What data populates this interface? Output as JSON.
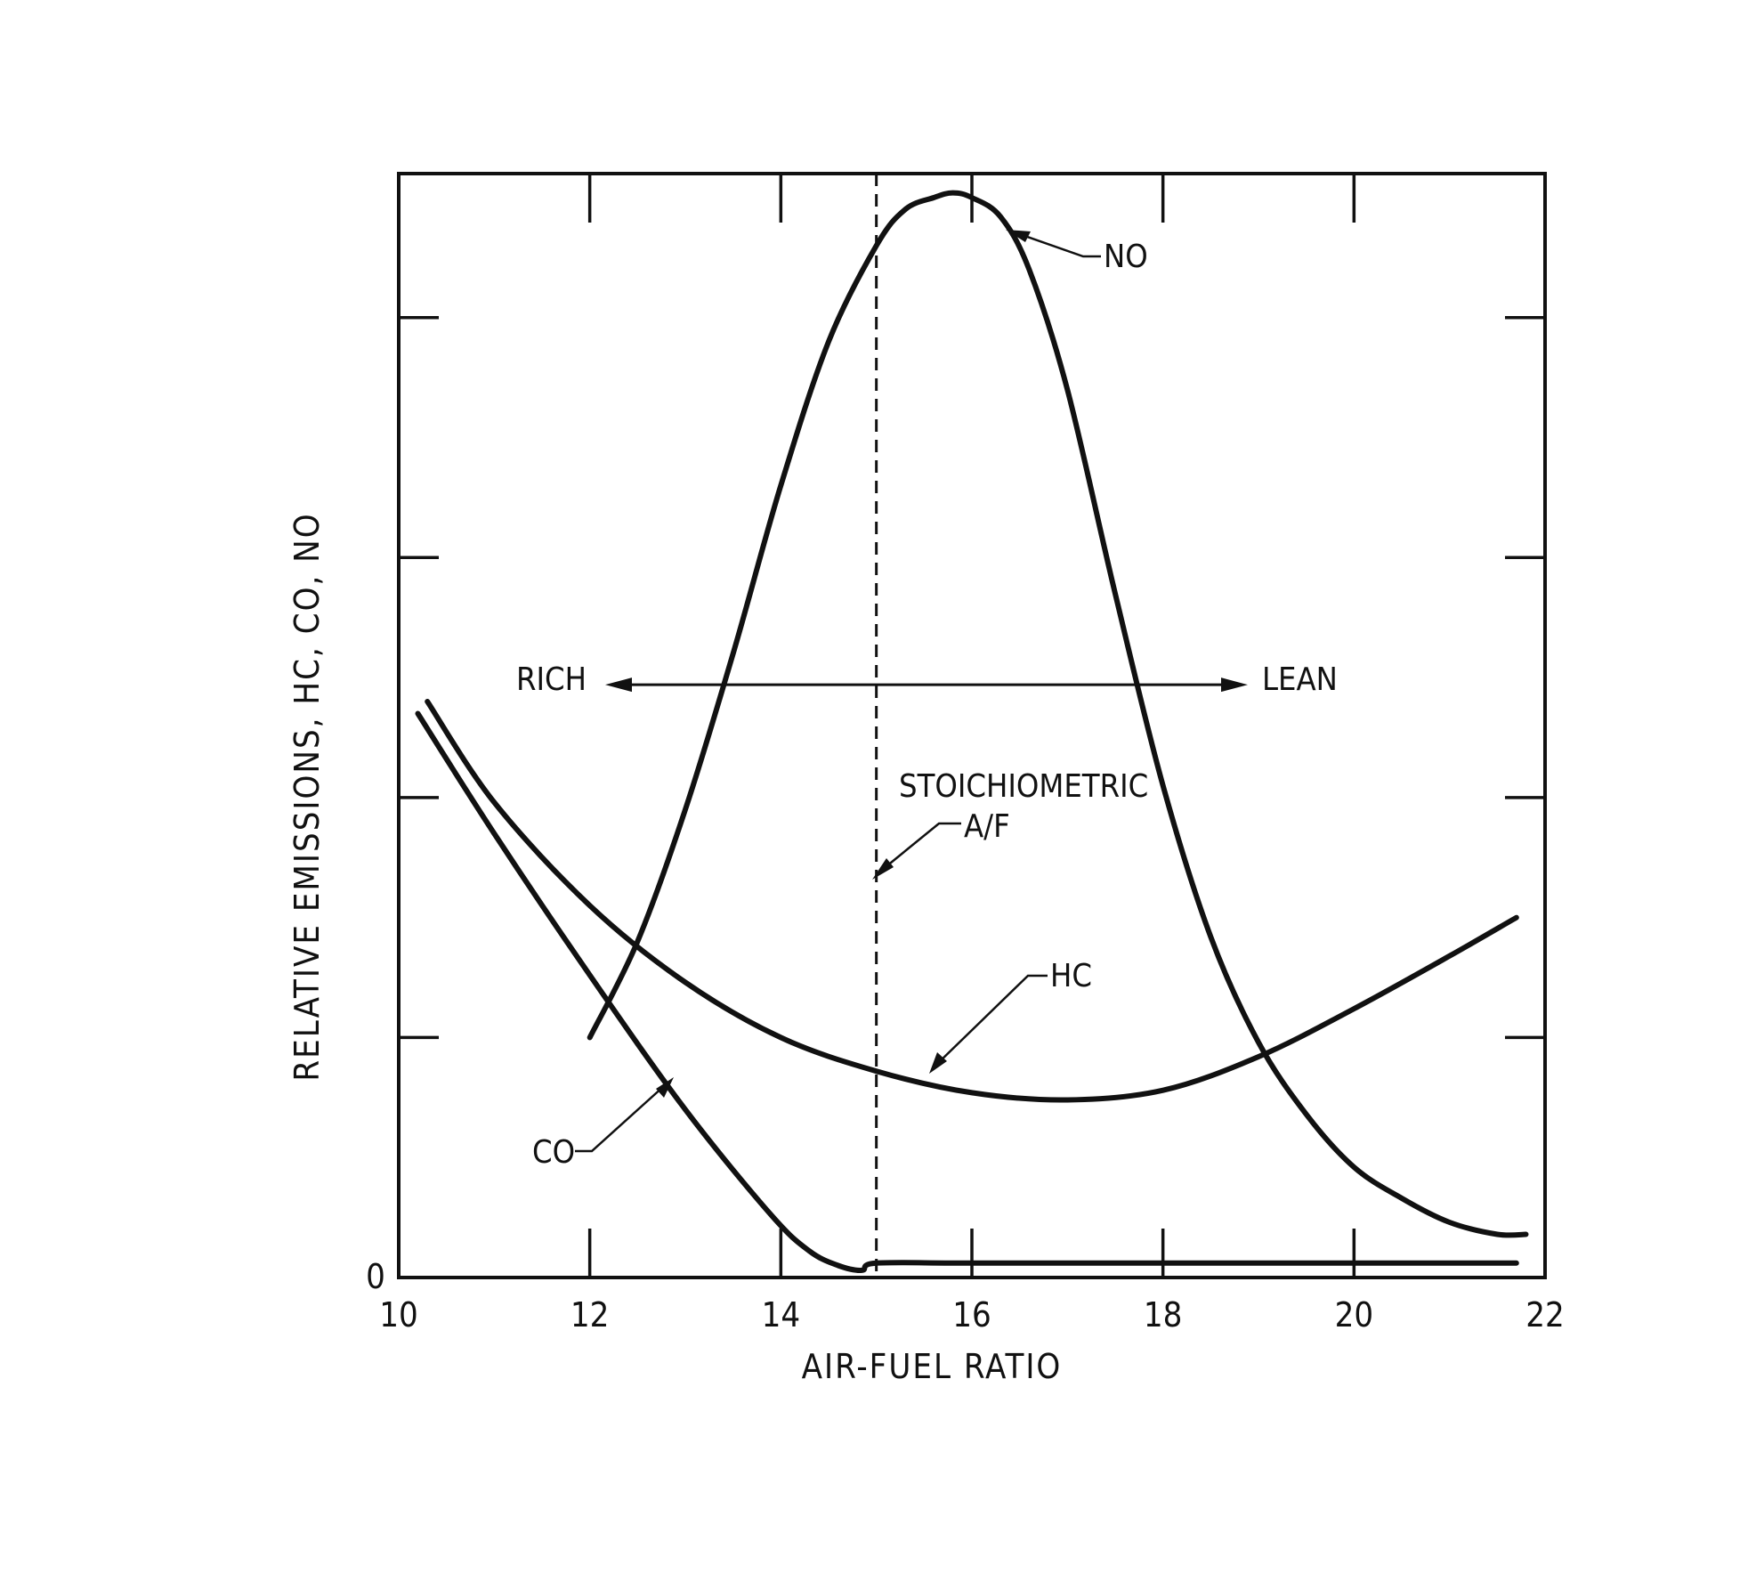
{
  "chart_data": {
    "type": "line",
    "title": "",
    "xlabel": "AIR-FUEL RATIO",
    "ylabel": "RELATIVE EMISSIONS, HC, CO, NO",
    "xlim": [
      10,
      22
    ],
    "ylim": [
      0,
      4.6
    ],
    "x_ticks": [
      10,
      12,
      14,
      16,
      18,
      20,
      22
    ],
    "x_tick_labels": [
      "10",
      "12",
      "14",
      "16",
      "18",
      "20",
      "22"
    ],
    "y_ticks": [
      0,
      1,
      2,
      3,
      4
    ],
    "y_tick_labels": [
      "0"
    ],
    "grid": false,
    "legend": "none",
    "series": [
      {
        "name": "NO",
        "x": [
          12.0,
          12.5,
          13.0,
          13.5,
          14.0,
          14.5,
          15.0,
          15.3,
          15.6,
          15.8,
          16.0,
          16.3,
          16.6,
          17.0,
          17.5,
          18.0,
          18.5,
          19.0,
          19.5,
          20.0,
          20.5,
          21.0,
          21.5,
          21.8
        ],
        "y": [
          1.0,
          1.4,
          1.95,
          2.6,
          3.3,
          3.9,
          4.3,
          4.45,
          4.5,
          4.52,
          4.5,
          4.42,
          4.2,
          3.7,
          2.85,
          2.05,
          1.42,
          0.98,
          0.68,
          0.46,
          0.33,
          0.23,
          0.18,
          0.18
        ]
      },
      {
        "name": "HC",
        "x": [
          10.3,
          11.0,
          12.0,
          13.0,
          14.0,
          15.0,
          16.0,
          17.0,
          18.0,
          19.0,
          20.0,
          21.0,
          21.7
        ],
        "y": [
          2.4,
          1.98,
          1.55,
          1.23,
          1.0,
          0.86,
          0.77,
          0.74,
          0.78,
          0.92,
          1.12,
          1.34,
          1.5
        ]
      },
      {
        "name": "CO",
        "x": [
          10.2,
          11.0,
          12.0,
          13.0,
          13.9,
          14.3,
          14.6,
          14.85,
          15.0,
          16.0,
          18.0,
          20.0,
          21.7
        ],
        "y": [
          2.35,
          1.85,
          1.26,
          0.7,
          0.26,
          0.11,
          0.05,
          0.03,
          0.06,
          0.06,
          0.06,
          0.06,
          0.06
        ]
      }
    ],
    "annotations": {
      "stoichiometric_x": 15.0,
      "stoichiometric_label_1": "STOICHIOMETRIC",
      "stoichiometric_label_2": "A/F",
      "rich_label": "RICH",
      "lean_label": "LEAN",
      "no_label": "NO",
      "hc_label": "HC",
      "co_label": "CO",
      "rich_lean_arrow_y": 2.47
    }
  }
}
